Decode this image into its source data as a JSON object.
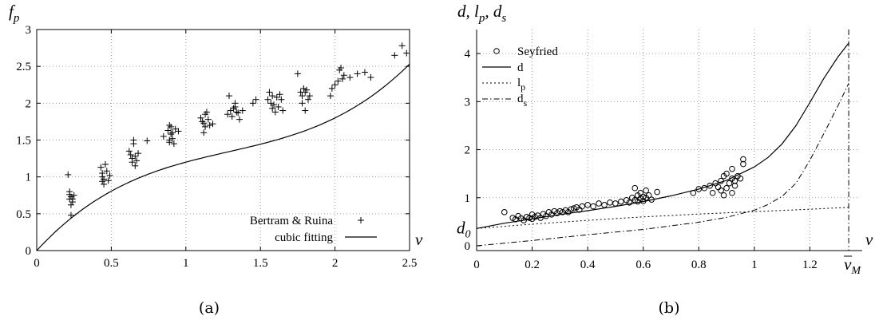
{
  "chart_data": [
    {
      "type": "scatter",
      "caption": "(a)",
      "xlabel": "v",
      "ylabel": "f",
      "ylabel_sub": "p",
      "xlim": [
        0,
        2.5
      ],
      "ylim": [
        0,
        3
      ],
      "xticks": [
        "0",
        "0.5",
        "1",
        "1.5",
        "2",
        "2.5"
      ],
      "yticks": [
        "0",
        "0.5",
        "1",
        "1.5",
        "2",
        "2.5",
        "3"
      ],
      "grid": true,
      "legend_position": "bottom-right",
      "series": [
        {
          "name": "Bertram & Ruina",
          "marker": "plus",
          "points": [
            [
              0.21,
              1.03
            ],
            [
              0.22,
              0.8
            ],
            [
              0.22,
              0.76
            ],
            [
              0.23,
              0.73
            ],
            [
              0.22,
              0.7
            ],
            [
              0.24,
              0.66
            ],
            [
              0.23,
              0.62
            ],
            [
              0.23,
              0.48
            ],
            [
              0.25,
              0.75
            ],
            [
              0.24,
              0.7
            ],
            [
              0.43,
              1.13
            ],
            [
              0.44,
              1.05
            ],
            [
              0.44,
              1.0
            ],
            [
              0.45,
              0.97
            ],
            [
              0.44,
              0.94
            ],
            [
              0.46,
              1.17
            ],
            [
              0.47,
              1.08
            ],
            [
              0.48,
              0.95
            ],
            [
              0.49,
              1.02
            ],
            [
              0.45,
              0.9
            ],
            [
              0.62,
              1.35
            ],
            [
              0.63,
              1.3
            ],
            [
              0.64,
              1.25
            ],
            [
              0.64,
              1.2
            ],
            [
              0.65,
              1.45
            ],
            [
              0.65,
              1.5
            ],
            [
              0.66,
              1.28
            ],
            [
              0.67,
              1.22
            ],
            [
              0.68,
              1.32
            ],
            [
              0.66,
              1.15
            ],
            [
              0.74,
              1.49
            ],
            [
              0.85,
              1.55
            ],
            [
              0.88,
              1.63
            ],
            [
              0.89,
              1.5
            ],
            [
              0.89,
              1.47
            ],
            [
              0.9,
              1.58
            ],
            [
              0.9,
              1.68
            ],
            [
              0.91,
              1.6
            ],
            [
              0.91,
              1.52
            ],
            [
              0.92,
              1.45
            ],
            [
              0.93,
              1.65
            ],
            [
              0.95,
              1.62
            ],
            [
              0.89,
              1.7
            ],
            [
              1.1,
              1.8
            ],
            [
              1.11,
              1.75
            ],
            [
              1.12,
              1.73
            ],
            [
              1.12,
              1.6
            ],
            [
              1.13,
              1.85
            ],
            [
              1.14,
              1.88
            ],
            [
              1.15,
              1.78
            ],
            [
              1.16,
              1.7
            ],
            [
              1.18,
              1.72
            ],
            [
              1.13,
              1.68
            ],
            [
              1.28,
              1.85
            ],
            [
              1.3,
              1.9
            ],
            [
              1.31,
              1.82
            ],
            [
              1.32,
              1.93
            ],
            [
              1.33,
              2.0
            ],
            [
              1.33,
              1.95
            ],
            [
              1.34,
              1.88
            ],
            [
              1.35,
              1.87
            ],
            [
              1.36,
              1.78
            ],
            [
              1.38,
              1.9
            ],
            [
              1.29,
              2.1
            ],
            [
              1.45,
              2.0
            ],
            [
              1.47,
              2.05
            ],
            [
              1.55,
              2.05
            ],
            [
              1.56,
              2.15
            ],
            [
              1.57,
              2.0
            ],
            [
              1.58,
              2.1
            ],
            [
              1.58,
              1.93
            ],
            [
              1.59,
              1.98
            ],
            [
              1.6,
              1.88
            ],
            [
              1.61,
              2.08
            ],
            [
              1.62,
              1.95
            ],
            [
              1.63,
              2.12
            ],
            [
              1.64,
              2.05
            ],
            [
              1.65,
              1.9
            ],
            [
              1.75,
              2.4
            ],
            [
              1.77,
              2.15
            ],
            [
              1.78,
              2.1
            ],
            [
              1.78,
              2.0
            ],
            [
              1.79,
              2.2
            ],
            [
              1.8,
              2.15
            ],
            [
              1.8,
              1.9
            ],
            [
              1.81,
              2.18
            ],
            [
              1.82,
              2.05
            ],
            [
              1.83,
              2.1
            ],
            [
              1.97,
              2.1
            ],
            [
              1.98,
              2.2
            ],
            [
              2.0,
              2.25
            ],
            [
              2.02,
              2.3
            ],
            [
              2.03,
              2.45
            ],
            [
              2.04,
              2.48
            ],
            [
              2.05,
              2.33
            ],
            [
              2.06,
              2.38
            ],
            [
              2.1,
              2.35
            ],
            [
              2.15,
              2.4
            ],
            [
              2.2,
              2.42
            ],
            [
              2.24,
              2.35
            ],
            [
              2.4,
              2.65
            ],
            [
              2.45,
              2.78
            ],
            [
              2.48,
              2.68
            ]
          ]
        },
        {
          "name": "cubic fitting",
          "style": "solid",
          "curve": {
            "kind": "cubic",
            "coefficients": [
              0,
              2.2,
              -1.35,
              0.35
            ],
            "x_range": [
              0,
              2.5
            ]
          }
        }
      ]
    },
    {
      "type": "scatter",
      "caption": "(b)",
      "xlabel": "v",
      "ylabel": "d, l_p, d_s",
      "ylabel_parts": [
        "d, l",
        "p",
        ", d",
        "s"
      ],
      "xlim": [
        0,
        1.38
      ],
      "ylim": [
        -0.1,
        4.5
      ],
      "xticks": [
        "0",
        "0.2",
        "0.4",
        "0.6",
        "0.8",
        "1",
        "1.2"
      ],
      "yticks": [
        "0",
        "1",
        "2",
        "3",
        "4"
      ],
      "grid": true,
      "legend_position": "top-left",
      "extra_tick_labels": {
        "d0": {
          "main": "d",
          "sub": "0",
          "y": 0.36
        },
        "vM": {
          "main": "v",
          "sub": "M",
          "x": 1.34
        }
      },
      "series": [
        {
          "name": "Seyfried",
          "marker": "circle",
          "points": [
            [
              0.1,
              0.7
            ],
            [
              0.13,
              0.58
            ],
            [
              0.14,
              0.55
            ],
            [
              0.15,
              0.62
            ],
            [
              0.16,
              0.57
            ],
            [
              0.17,
              0.53
            ],
            [
              0.18,
              0.6
            ],
            [
              0.19,
              0.58
            ],
            [
              0.2,
              0.56
            ],
            [
              0.2,
              0.65
            ],
            [
              0.21,
              0.6
            ],
            [
              0.22,
              0.63
            ],
            [
              0.23,
              0.58
            ],
            [
              0.24,
              0.66
            ],
            [
              0.25,
              0.62
            ],
            [
              0.26,
              0.7
            ],
            [
              0.27,
              0.65
            ],
            [
              0.28,
              0.72
            ],
            [
              0.29,
              0.68
            ],
            [
              0.3,
              0.72
            ],
            [
              0.31,
              0.7
            ],
            [
              0.32,
              0.74
            ],
            [
              0.33,
              0.7
            ],
            [
              0.34,
              0.76
            ],
            [
              0.35,
              0.78
            ],
            [
              0.36,
              0.8
            ],
            [
              0.37,
              0.75
            ],
            [
              0.38,
              0.82
            ],
            [
              0.4,
              0.85
            ],
            [
              0.42,
              0.82
            ],
            [
              0.44,
              0.88
            ],
            [
              0.46,
              0.85
            ],
            [
              0.48,
              0.9
            ],
            [
              0.5,
              0.88
            ],
            [
              0.52,
              0.92
            ],
            [
              0.54,
              0.95
            ],
            [
              0.55,
              0.9
            ],
            [
              0.56,
              1.0
            ],
            [
              0.57,
              0.95
            ],
            [
              0.57,
              1.2
            ],
            [
              0.58,
              1.05
            ],
            [
              0.58,
              0.92
            ],
            [
              0.59,
              1.1
            ],
            [
              0.59,
              0.98
            ],
            [
              0.6,
              1.02
            ],
            [
              0.6,
              0.93
            ],
            [
              0.61,
              1.15
            ],
            [
              0.61,
              1.0
            ],
            [
              0.62,
              1.05
            ],
            [
              0.63,
              0.96
            ],
            [
              0.65,
              1.12
            ],
            [
              0.78,
              1.1
            ],
            [
              0.8,
              1.18
            ],
            [
              0.82,
              1.2
            ],
            [
              0.84,
              1.25
            ],
            [
              0.85,
              1.1
            ],
            [
              0.86,
              1.3
            ],
            [
              0.87,
              1.22
            ],
            [
              0.88,
              1.15
            ],
            [
              0.88,
              1.35
            ],
            [
              0.89,
              1.45
            ],
            [
              0.9,
              1.2
            ],
            [
              0.9,
              1.5
            ],
            [
              0.91,
              1.3
            ],
            [
              0.92,
              1.4
            ],
            [
              0.92,
              1.6
            ],
            [
              0.93,
              1.35
            ],
            [
              0.93,
              1.25
            ],
            [
              0.94,
              1.45
            ],
            [
              0.95,
              1.4
            ],
            [
              0.96,
              1.7
            ],
            [
              0.96,
              1.8
            ],
            [
              0.92,
              1.1
            ],
            [
              0.89,
              1.05
            ]
          ]
        },
        {
          "name": "d",
          "style": "solid",
          "points": [
            [
              0,
              0.36
            ],
            [
              0.1,
              0.47
            ],
            [
              0.2,
              0.56
            ],
            [
              0.3,
              0.65
            ],
            [
              0.4,
              0.73
            ],
            [
              0.5,
              0.82
            ],
            [
              0.6,
              0.92
            ],
            [
              0.7,
              1.04
            ],
            [
              0.8,
              1.18
            ],
            [
              0.9,
              1.36
            ],
            [
              1.0,
              1.64
            ],
            [
              1.05,
              1.84
            ],
            [
              1.1,
              2.12
            ],
            [
              1.15,
              2.5
            ],
            [
              1.2,
              2.98
            ],
            [
              1.25,
              3.48
            ],
            [
              1.3,
              3.92
            ],
            [
              1.34,
              4.22
            ]
          ]
        },
        {
          "name": "l",
          "name_sub": "p",
          "style": "dotted",
          "points": [
            [
              0,
              0.36
            ],
            [
              0.2,
              0.45
            ],
            [
              0.4,
              0.53
            ],
            [
              0.6,
              0.6
            ],
            [
              0.8,
              0.66
            ],
            [
              1.0,
              0.71
            ],
            [
              1.2,
              0.76
            ],
            [
              1.34,
              0.8
            ]
          ]
        },
        {
          "name": "d",
          "name_sub": "s",
          "style": "dashdot",
          "points": [
            [
              0,
              0
            ],
            [
              0.2,
              0.11
            ],
            [
              0.4,
              0.23
            ],
            [
              0.6,
              0.34
            ],
            [
              0.8,
              0.49
            ],
            [
              0.9,
              0.59
            ],
            [
              1.0,
              0.74
            ],
            [
              1.05,
              0.86
            ],
            [
              1.1,
              1.03
            ],
            [
              1.15,
              1.3
            ],
            [
              1.2,
              1.78
            ],
            [
              1.25,
              2.33
            ],
            [
              1.3,
              2.9
            ],
            [
              1.34,
              3.38
            ]
          ]
        }
      ]
    }
  ]
}
